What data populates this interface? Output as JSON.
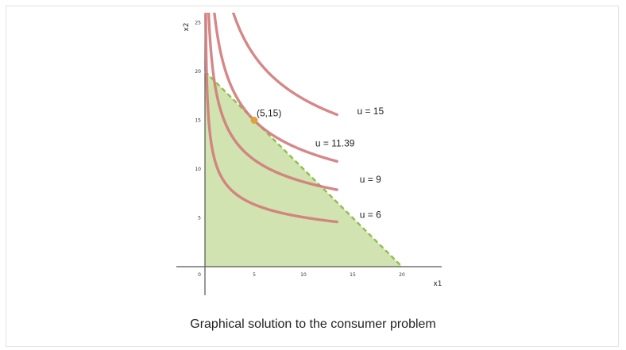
{
  "caption": "Graphical solution to the consumer problem",
  "chart_data": {
    "type": "line",
    "xlabel": "x1",
    "ylabel": "x2",
    "xlim": [
      -3,
      25
    ],
    "ylim": [
      -3,
      25
    ],
    "x_ticks": [
      0,
      5,
      10,
      15,
      20
    ],
    "y_ticks": [
      0,
      5,
      10,
      15,
      20,
      25
    ],
    "budget_line": {
      "from": [
        0,
        20
      ],
      "to": [
        20,
        0
      ],
      "style": "dashed",
      "color": "#8fbf4a"
    },
    "feasible_region": {
      "vertices": [
        [
          0,
          0
        ],
        [
          0,
          20
        ],
        [
          20,
          0
        ]
      ],
      "color": "#a9cc6f"
    },
    "indifference_curves": [
      {
        "name": "u = 6",
        "utility": 6,
        "color": "#d17a7a"
      },
      {
        "name": "u = 9",
        "utility": 9,
        "color": "#d17a7a"
      },
      {
        "name": "u = 11.39",
        "utility": 11.39,
        "color": "#d17a7a"
      },
      {
        "name": "u = 15",
        "utility": 15,
        "color": "#d17a7a"
      }
    ],
    "optimum": {
      "label": "(5,15)",
      "x": 5,
      "y": 15,
      "color": "#e0a040"
    },
    "curve_label_points": [
      {
        "x": 16.8,
        "y": 5.0
      },
      {
        "x": 16.8,
        "y": 8.6
      },
      {
        "x": 13.2,
        "y": 12.3
      },
      {
        "x": 16.8,
        "y": 15.6
      }
    ]
  }
}
